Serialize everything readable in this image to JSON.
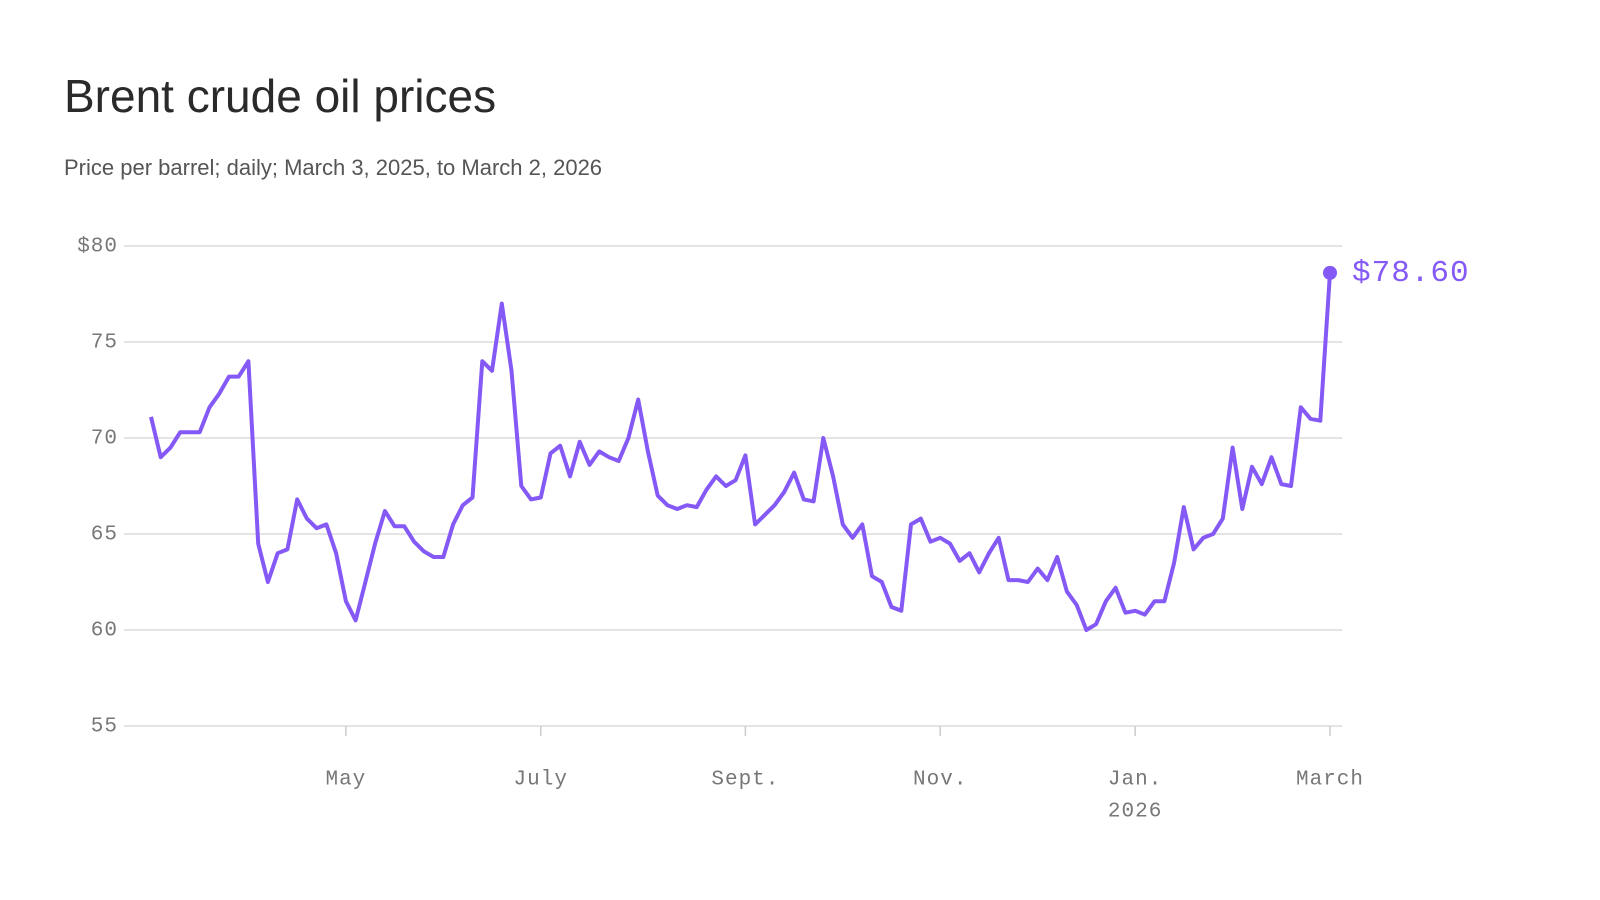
{
  "chart_data": {
    "type": "line",
    "title": "Brent crude oil prices",
    "subtitle": "Price per barrel; daily; March 3, 2025, to March 2, 2026",
    "categories": [
      null,
      null,
      null,
      null,
      null,
      null,
      null,
      null,
      null,
      null,
      null,
      null,
      null,
      null,
      null,
      null,
      null,
      null,
      null,
      null,
      "May",
      null,
      null,
      null,
      null,
      null,
      null,
      null,
      null,
      null,
      null,
      null,
      null,
      null,
      null,
      null,
      null,
      null,
      null,
      null,
      "July",
      null,
      null,
      null,
      null,
      null,
      null,
      null,
      null,
      null,
      null,
      null,
      null,
      null,
      null,
      null,
      null,
      null,
      null,
      null,
      null,
      "Sept.",
      null,
      null,
      null,
      null,
      null,
      null,
      null,
      null,
      null,
      null,
      null,
      null,
      null,
      null,
      null,
      null,
      null,
      null,
      null,
      "Nov.",
      null,
      null,
      null,
      null,
      null,
      null,
      null,
      null,
      null,
      null,
      null,
      null,
      null,
      null,
      null,
      null,
      null,
      null,
      null,
      "Jan.",
      null,
      null,
      null,
      null,
      null,
      null,
      null,
      null,
      null,
      null,
      null,
      null,
      null,
      null,
      null,
      null,
      null,
      null,
      null,
      "March"
    ],
    "year_label": "2026",
    "series": [
      {
        "name": "Brent crude",
        "color": "#8459f6",
        "values": [
          71.1,
          69.0,
          69.5,
          70.3,
          70.3,
          70.3,
          71.6,
          72.3,
          73.2,
          73.2,
          74.0,
          64.5,
          62.5,
          64.0,
          64.2,
          66.8,
          65.8,
          65.3,
          65.5,
          64.0,
          61.5,
          60.5,
          62.5,
          64.5,
          66.2,
          65.4,
          65.4,
          64.6,
          64.1,
          63.8,
          63.8,
          65.5,
          66.5,
          66.9,
          74.0,
          73.5,
          77.0,
          73.5,
          67.5,
          66.8,
          66.9,
          69.2,
          69.6,
          68.0,
          69.8,
          68.6,
          69.3,
          69.0,
          68.8,
          70.0,
          72.0,
          69.3,
          67.0,
          66.5,
          66.3,
          66.5,
          66.4,
          67.3,
          68.0,
          67.5,
          67.8,
          69.1,
          65.5,
          66.0,
          66.5,
          67.2,
          68.2,
          66.8,
          66.7,
          70.0,
          68.0,
          65.5,
          64.8,
          65.5,
          62.8,
          62.5,
          61.2,
          61.0,
          65.5,
          65.8,
          64.6,
          64.8,
          64.5,
          63.6,
          64.0,
          63.0,
          64.0,
          64.8,
          62.6,
          62.6,
          62.5,
          63.2,
          62.6,
          63.8,
          62.0,
          61.3,
          60.0,
          60.3,
          61.5,
          62.2,
          60.9,
          61.0,
          60.8,
          61.5,
          61.5,
          63.5,
          66.4,
          64.2,
          64.8,
          65.0,
          65.8,
          69.5,
          66.3,
          68.5,
          67.6,
          69.0,
          67.6,
          67.5,
          71.6,
          71.0,
          70.9,
          78.6
        ],
        "value_labels": [
          null,
          null,
          null,
          null,
          null,
          null,
          null,
          null,
          null,
          null,
          null,
          null,
          null,
          null,
          null,
          null,
          null,
          null,
          null,
          null,
          null,
          null,
          null,
          null,
          null,
          null,
          null,
          null,
          null,
          null,
          null,
          null,
          null,
          null,
          null,
          null,
          null,
          null,
          null,
          null,
          null,
          null,
          null,
          null,
          null,
          null,
          null,
          null,
          null,
          null,
          null,
          null,
          null,
          null,
          null,
          null,
          null,
          null,
          null,
          null,
          null,
          null,
          null,
          null,
          null,
          null,
          null,
          null,
          null,
          null,
          null,
          null,
          null,
          null,
          null,
          null,
          null,
          null,
          null,
          null,
          null,
          null,
          null,
          null,
          null,
          null,
          null,
          null,
          null,
          null,
          null,
          null,
          null,
          null,
          null,
          null,
          null,
          null,
          null,
          null,
          null,
          null,
          null,
          null,
          null,
          null,
          null,
          null,
          null,
          null,
          null,
          null,
          null,
          null,
          null,
          null,
          null,
          null,
          null,
          null,
          null,
          "$78.60"
        ]
      }
    ],
    "ylim": [
      55,
      80
    ],
    "yticks": [
      {
        "value": 80,
        "label": "$80"
      },
      75,
      70,
      65,
      60,
      55
    ],
    "grid": true
  }
}
